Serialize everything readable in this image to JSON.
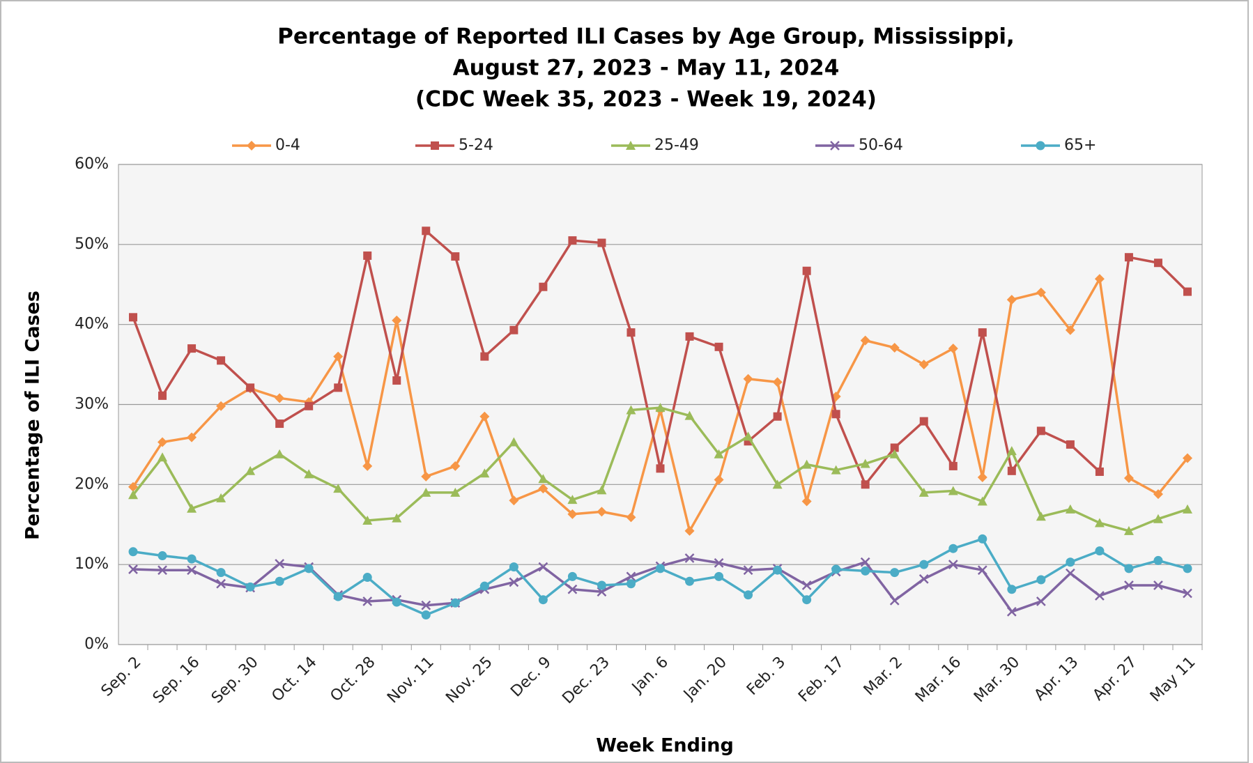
{
  "chart_data": {
    "type": "line",
    "title": [
      "Percentage of Reported ILI Cases by Age Group, Mississippi,",
      "August 27, 2023 - May 11, 2024",
      "(CDC Week 35, 2023 - Week 19, 2024)"
    ],
    "x_label": "Week Ending",
    "y_label": "Percentage of ILI Cases",
    "categories": [
      "Sep. 2",
      null,
      "Sep. 16",
      null,
      "Sep. 30",
      null,
      "Oct. 14",
      null,
      "Oct. 28",
      null,
      "Nov. 11",
      null,
      "Nov. 25",
      null,
      "Dec. 9",
      null,
      "Dec. 23",
      null,
      "Jan. 6",
      null,
      "Jan. 20",
      null,
      "Feb. 3",
      null,
      "Feb. 17",
      null,
      "Mar. 2",
      null,
      "Mar. 16",
      null,
      "Mar. 30",
      null,
      "Apr. 13",
      null,
      "Apr. 27",
      null,
      "May 11"
    ],
    "series": [
      {
        "name": "0-4",
        "color": "#f79646",
        "marker": "diamond",
        "values": [
          19.7,
          25.3,
          25.9,
          29.8,
          32.0,
          30.8,
          30.3,
          36.0,
          22.3,
          40.5,
          21.0,
          22.3,
          28.5,
          18.0,
          19.5,
          16.3,
          16.6,
          15.9,
          29.3,
          14.2,
          20.6,
          33.2,
          32.8,
          17.9,
          31.0,
          38.0,
          37.1,
          35.0,
          37.0,
          20.9,
          43.1,
          44.0,
          39.3,
          45.7,
          20.8,
          18.8,
          23.3
        ]
      },
      {
        "name": "5-24",
        "color": "#c0504d",
        "marker": "square",
        "values": [
          40.9,
          31.1,
          37.0,
          35.5,
          32.1,
          27.6,
          29.8,
          32.1,
          48.6,
          33.0,
          51.7,
          48.5,
          36.0,
          39.3,
          44.7,
          50.5,
          50.2,
          39.0,
          22.0,
          38.5,
          37.2,
          25.4,
          28.5,
          46.7,
          28.8,
          20.0,
          24.6,
          27.9,
          22.3,
          39.0,
          21.7,
          26.7,
          25.0,
          21.6,
          48.4,
          47.7,
          44.1
        ]
      },
      {
        "name": "25-49",
        "color": "#9bbb59",
        "marker": "triangle",
        "values": [
          18.7,
          23.4,
          17.0,
          18.3,
          21.7,
          23.8,
          21.3,
          19.5,
          15.5,
          15.8,
          19.0,
          19.0,
          21.4,
          25.3,
          20.7,
          18.1,
          19.3,
          29.3,
          29.6,
          28.6,
          23.8,
          26.0,
          20.0,
          22.5,
          21.8,
          22.6,
          23.8,
          19.0,
          19.2,
          17.9,
          24.2,
          16.0,
          16.9,
          15.2,
          14.2,
          15.7,
          16.9
        ]
      },
      {
        "name": "50-64",
        "color": "#8064a2",
        "marker": "x",
        "values": [
          9.4,
          9.3,
          9.3,
          7.6,
          7.1,
          10.1,
          9.7,
          6.2,
          5.4,
          5.6,
          4.9,
          5.2,
          6.9,
          7.8,
          9.7,
          6.9,
          6.6,
          8.5,
          9.8,
          10.8,
          10.2,
          9.3,
          9.5,
          7.4,
          9.1,
          10.3,
          5.5,
          8.2,
          10.0,
          9.3,
          4.1,
          5.4,
          8.9,
          6.1,
          7.4,
          7.4,
          6.4
        ]
      },
      {
        "name": "65+",
        "color": "#4bacc6",
        "marker": "circle",
        "values": [
          11.6,
          11.1,
          10.7,
          9.0,
          7.2,
          7.9,
          9.5,
          6.0,
          8.4,
          5.3,
          3.7,
          5.2,
          7.3,
          9.7,
          5.6,
          8.5,
          7.4,
          7.6,
          9.5,
          7.9,
          8.5,
          6.2,
          9.3,
          5.6,
          9.4,
          9.2,
          9.0,
          10.0,
          12.0,
          13.2,
          6.9,
          8.1,
          10.3,
          11.7,
          9.5,
          10.5,
          9.5
        ]
      }
    ],
    "ylim": [
      0,
      60
    ],
    "yticks": [
      {
        "value": 0,
        "label": "0%"
      },
      {
        "value": 10,
        "label": "10%"
      },
      {
        "value": 20,
        "label": "20%"
      },
      {
        "value": 30,
        "label": "30%"
      },
      {
        "value": 40,
        "label": "40%"
      },
      {
        "value": 50,
        "label": "50%"
      },
      {
        "value": 60,
        "label": "60%"
      }
    ],
    "grid": true,
    "legend": "top"
  }
}
